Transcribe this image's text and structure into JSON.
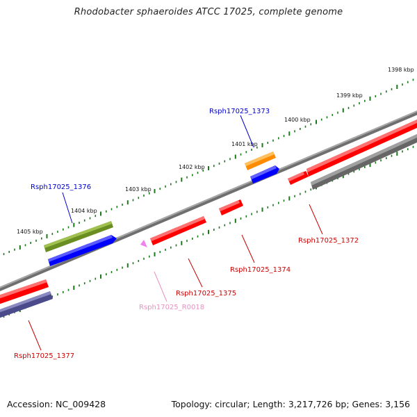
{
  "title": "Rhodobacter sphaeroides ATCC 17025, complete genome",
  "footer": {
    "accession": "Accession: NC_009428",
    "summary": "Topology: circular; Length: 3,217,726 bp; Genes: 3,156"
  },
  "scale_labels": [
    "1398 kbp",
    "1399 kbp",
    "1400 kbp",
    "1401 kbp",
    "1402 kbp",
    "1403 kbp",
    "1404 kbp",
    "1405 kbp"
  ],
  "genes": [
    {
      "id": "Rsph17025_1373",
      "color": "#0000cc"
    },
    {
      "id": "Rsph17025_1376",
      "color": "#0000cc"
    },
    {
      "id": "Rsph17025_1372",
      "color": "#cc0000"
    },
    {
      "id": "Rsph17025_1374",
      "color": "#cc0000"
    },
    {
      "id": "Rsph17025_1375",
      "color": "#cc0000"
    },
    {
      "id": "Rsph17025_R0018",
      "color": "#e890c0"
    },
    {
      "id": "Rsph17025_1377",
      "color": "#cc0000"
    }
  ],
  "colors": {
    "backbone": "#8a8a8a",
    "tick": "#1a7a1a",
    "cds_red": "#ff0000",
    "cds_blue": "#0000ff",
    "cds_orange": "#ff8c00",
    "cds_olive": "#6b8e23",
    "cds_grey": "#666666",
    "cds_slate": "#4b4b8c",
    "rna_pink": "#ee82ee"
  }
}
